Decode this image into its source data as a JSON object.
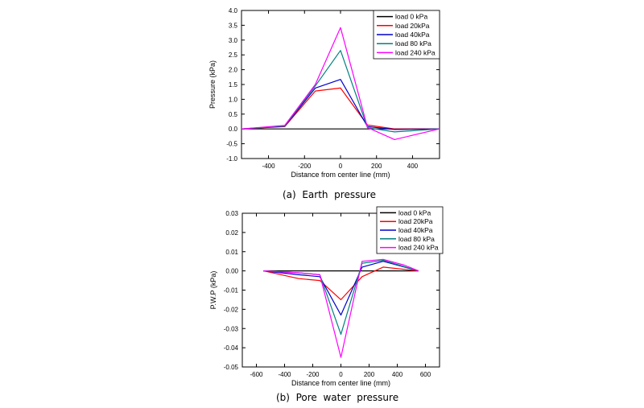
{
  "captions": [
    "(a)  Earth  pressure",
    "(b)  Pore  water  pressure"
  ],
  "chart_data": [
    {
      "type": "line",
      "xlabel": "Distance from center line (mm)",
      "ylabel": "Pressure (kPa)",
      "xlim": [
        -550,
        550
      ],
      "ylim": [
        -1.0,
        4.0
      ],
      "xticks": [
        -400,
        -200,
        0,
        200,
        400
      ],
      "yticks": [
        -1.0,
        -0.5,
        0.0,
        0.5,
        1.0,
        1.5,
        2.0,
        2.5,
        3.0,
        3.5,
        4.0
      ],
      "ytick_decimals": 1,
      "legend_position": "top-right",
      "grid": false,
      "series": [
        {
          "name": "load 0 kPa",
          "color": "#000000",
          "points": [
            [
              -550,
              0.0
            ],
            [
              550,
              0.0
            ]
          ]
        },
        {
          "name": "load 20kPa",
          "color": "#ff0000",
          "points": [
            [
              -550,
              0.0
            ],
            [
              -310,
              0.08
            ],
            [
              -140,
              1.28
            ],
            [
              0,
              1.38
            ],
            [
              150,
              0.13
            ],
            [
              300,
              0.0
            ],
            [
              550,
              0.0
            ]
          ]
        },
        {
          "name": "load 40kPa",
          "color": "#0000cc",
          "points": [
            [
              -550,
              0.0
            ],
            [
              -310,
              0.09
            ],
            [
              -140,
              1.38
            ],
            [
              0,
              1.67
            ],
            [
              150,
              0.08
            ],
            [
              300,
              -0.02
            ],
            [
              550,
              0.0
            ]
          ]
        },
        {
          "name": "load 80 kPa",
          "color": "#008080",
          "points": [
            [
              -550,
              0.0
            ],
            [
              -310,
              0.1
            ],
            [
              -140,
              1.45
            ],
            [
              0,
              2.65
            ],
            [
              150,
              0.04
            ],
            [
              300,
              -0.1
            ],
            [
              550,
              0.0
            ]
          ]
        },
        {
          "name": "load 240 kPa",
          "color": "#ff00ff",
          "points": [
            [
              -550,
              0.0
            ],
            [
              -310,
              0.12
            ],
            [
              -140,
              1.5
            ],
            [
              0,
              3.42
            ],
            [
              150,
              0.05
            ],
            [
              300,
              -0.36
            ],
            [
              550,
              0.0
            ]
          ]
        }
      ]
    },
    {
      "type": "line",
      "xlabel": "Distance from center line (mm)",
      "ylabel": "P.W.P (kPa)",
      "xlim": [
        -700,
        700
      ],
      "ylim": [
        -0.05,
        0.03
      ],
      "xticks": [
        -600,
        -400,
        -200,
        0,
        200,
        400,
        600
      ],
      "yticks": [
        -0.05,
        -0.04,
        -0.03,
        -0.02,
        -0.01,
        0.0,
        0.01,
        0.02,
        0.03
      ],
      "ytick_decimals": 2,
      "legend_position": "top-right",
      "grid": false,
      "series": [
        {
          "name": "load 0 kPa",
          "color": "#000000",
          "points": [
            [
              -550,
              0.0
            ],
            [
              550,
              0.0
            ]
          ]
        },
        {
          "name": "load 20kPa",
          "color": "#ff0000",
          "points": [
            [
              -550,
              0.0
            ],
            [
              -300,
              -0.004
            ],
            [
              -150,
              -0.005
            ],
            [
              0,
              -0.015
            ],
            [
              150,
              -0.003
            ],
            [
              300,
              0.002
            ],
            [
              550,
              0.0
            ]
          ]
        },
        {
          "name": "load 40kPa",
          "color": "#0000cc",
          "points": [
            [
              -550,
              0.0
            ],
            [
              -300,
              -0.002
            ],
            [
              -150,
              -0.003
            ],
            [
              0,
              -0.023
            ],
            [
              150,
              0.002
            ],
            [
              300,
              0.005
            ],
            [
              550,
              0.0
            ]
          ]
        },
        {
          "name": "load 80 kPa",
          "color": "#008080",
          "points": [
            [
              -550,
              0.0
            ],
            [
              -300,
              -0.001
            ],
            [
              -150,
              -0.002
            ],
            [
              0,
              -0.033
            ],
            [
              150,
              0.004
            ],
            [
              300,
              0.0055
            ],
            [
              550,
              0.0
            ]
          ]
        },
        {
          "name": "load 240 kPa",
          "color": "#ff00ff",
          "points": [
            [
              -550,
              0.0
            ],
            [
              -300,
              -0.001
            ],
            [
              -150,
              -0.002
            ],
            [
              0,
              -0.045
            ],
            [
              150,
              0.005
            ],
            [
              300,
              0.006
            ],
            [
              450,
              0.003
            ],
            [
              550,
              0.0
            ]
          ]
        }
      ]
    }
  ]
}
